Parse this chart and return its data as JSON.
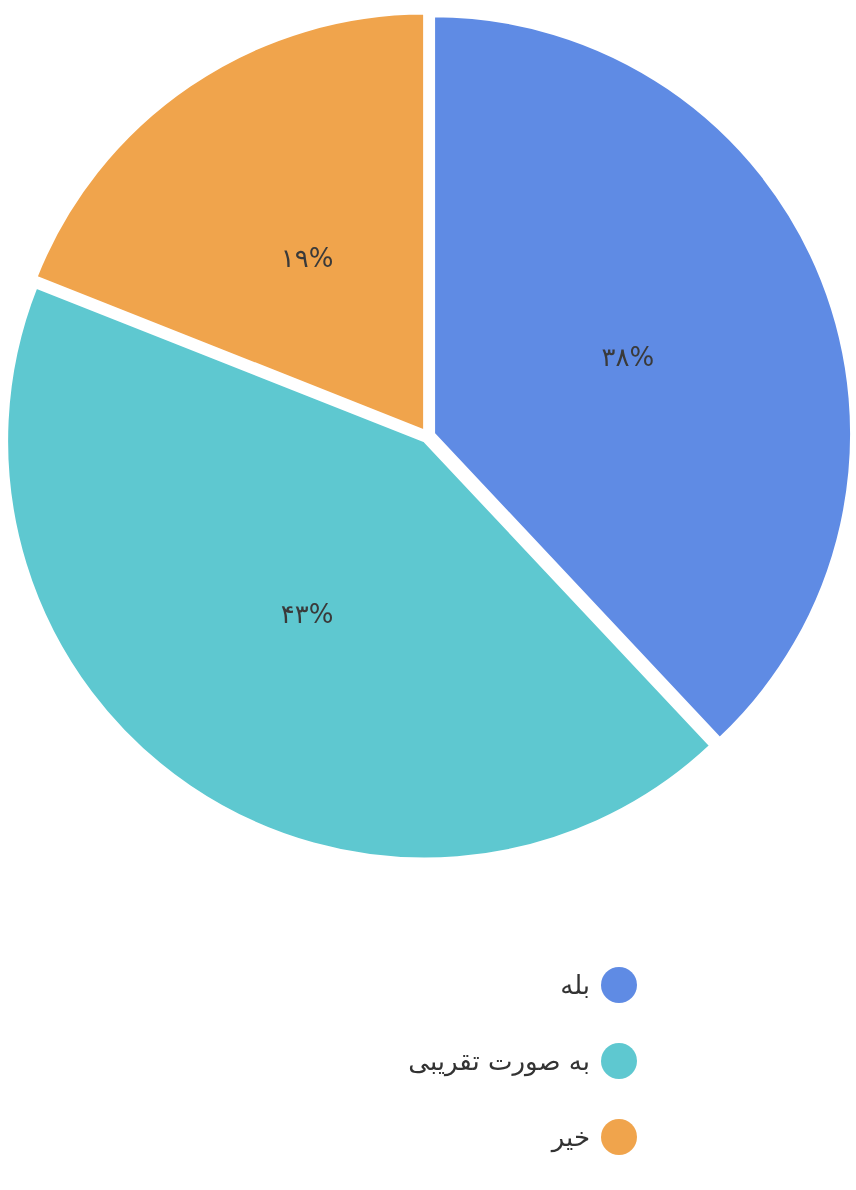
{
  "chart_data": {
    "type": "pie",
    "categories": [
      "بله",
      "به صورت تقریبی",
      "خیر"
    ],
    "values": [
      38,
      43,
      19
    ],
    "colors": [
      "#5f8be4",
      "#5ec8d0",
      "#f0a44c"
    ],
    "value_labels": [
      "۳۸%",
      "۴۳%",
      "۱۹%"
    ],
    "legend": "bottom"
  }
}
